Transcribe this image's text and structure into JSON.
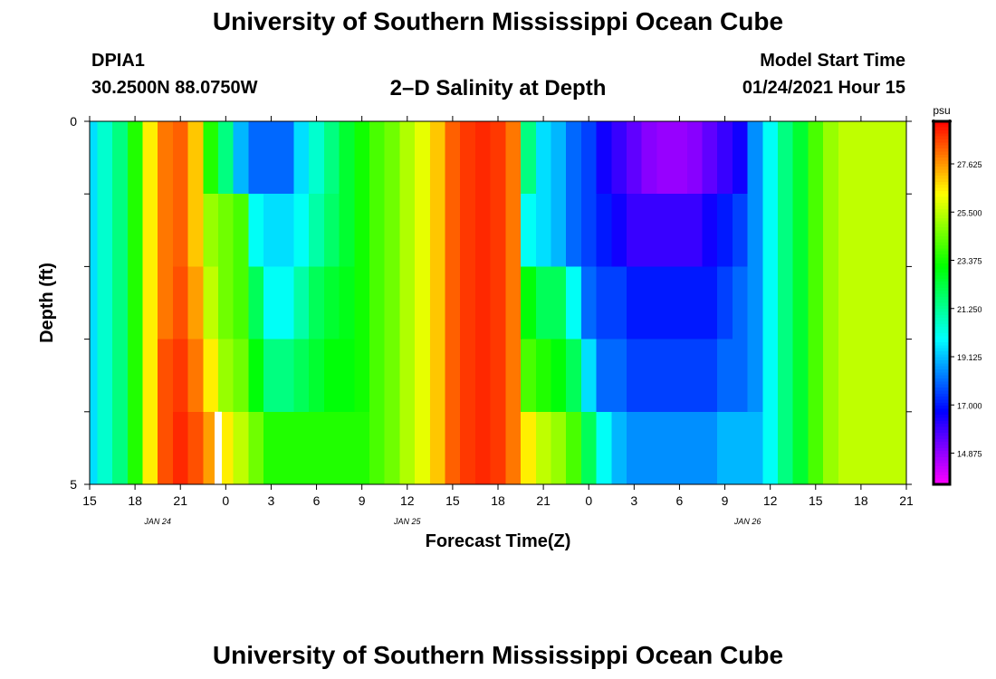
{
  "header": {
    "title": "University of Southern Mississippi Ocean Cube",
    "station_id": "DPIA1",
    "station_position": "30.2500N 88.0750W",
    "subtitle": "2–D Salinity at Depth",
    "model_start_label": "Model Start Time",
    "model_start_value": "01/24/2021 Hour 15"
  },
  "footer": {
    "title": "University of Southern Mississippi Ocean Cube"
  },
  "chart_data": {
    "type": "heatmap",
    "title": "2–D Salinity at Depth",
    "xlabel": "Forecast Time(Z)",
    "ylabel": "Depth (ft)",
    "x_start_hour": 15,
    "x_range_hours": [
      0,
      54
    ],
    "x_ticks": [
      {
        "hour": 0,
        "label": "15"
      },
      {
        "hour": 3,
        "label": "18"
      },
      {
        "hour": 6,
        "label": "21"
      },
      {
        "hour": 9,
        "label": "0"
      },
      {
        "hour": 12,
        "label": "3"
      },
      {
        "hour": 15,
        "label": "6"
      },
      {
        "hour": 18,
        "label": "9"
      },
      {
        "hour": 21,
        "label": "12"
      },
      {
        "hour": 24,
        "label": "15"
      },
      {
        "hour": 27,
        "label": "18"
      },
      {
        "hour": 30,
        "label": "21"
      },
      {
        "hour": 33,
        "label": "0"
      },
      {
        "hour": 36,
        "label": "3"
      },
      {
        "hour": 39,
        "label": "6"
      },
      {
        "hour": 42,
        "label": "9"
      },
      {
        "hour": 45,
        "label": "12"
      },
      {
        "hour": 48,
        "label": "15"
      },
      {
        "hour": 51,
        "label": "18"
      },
      {
        "hour": 54,
        "label": "21"
      }
    ],
    "date_labels": [
      {
        "hour": 4.5,
        "label": "JAN  24"
      },
      {
        "hour": 21,
        "label": "JAN  25"
      },
      {
        "hour": 43.5,
        "label": "JAN  26"
      }
    ],
    "y_range": [
      0,
      5
    ],
    "y_tick_labels": [
      {
        "depth": 0,
        "label": "0"
      },
      {
        "depth": 5,
        "label": "5"
      }
    ],
    "depth_levels": [
      0,
      0.5,
      1.5,
      2.5,
      3.5,
      4.5
    ],
    "colorbar": {
      "unit": "psu",
      "range": [
        13.5,
        29.5
      ],
      "tick_values": [
        27.625,
        25.5,
        23.375,
        21.25,
        19.125,
        17.0,
        14.875
      ],
      "tick_labels": [
        "27.625",
        "25.500",
        "23.375",
        "21.250",
        "19.125",
        "17.000",
        "14.875"
      ]
    },
    "time_series_hours": [
      0,
      1,
      2,
      3,
      4,
      5,
      6,
      7,
      8,
      9,
      10,
      11,
      12,
      13,
      14,
      15,
      16,
      17,
      18,
      19,
      20,
      21,
      22,
      23,
      24,
      25,
      26,
      27,
      28,
      29,
      30,
      31,
      32,
      33,
      34,
      35,
      36,
      37,
      38,
      39,
      40,
      41,
      42,
      43,
      44,
      45,
      46,
      47,
      48,
      49,
      50,
      51,
      52,
      53,
      54
    ],
    "salinity_by_depth": [
      [
        19.5,
        20.5,
        21.5,
        23.5,
        26.5,
        28.0,
        28.3,
        27.0,
        23.5,
        21.5,
        19.0,
        18.0,
        18.0,
        18.0,
        19.5,
        20.5,
        21.5,
        22.5,
        23.3,
        24.0,
        24.5,
        25.3,
        26.0,
        27.0,
        28.3,
        28.8,
        29.0,
        28.8,
        28.0,
        21.5,
        19.5,
        19.0,
        18.0,
        17.5,
        16.5,
        16.0,
        15.5,
        15.0,
        14.8,
        14.8,
        15.0,
        15.5,
        16.0,
        16.5,
        18.5,
        20.0,
        21.5,
        22.5,
        24.0,
        25.0,
        25.5,
        25.5,
        25.5,
        25.5,
        25.5
      ],
      [
        19.5,
        20.5,
        21.5,
        23.5,
        26.5,
        28.0,
        28.3,
        27.0,
        23.5,
        21.5,
        19.0,
        18.0,
        18.0,
        18.0,
        19.5,
        20.5,
        21.5,
        22.5,
        23.3,
        24.0,
        24.5,
        25.3,
        26.0,
        27.0,
        28.3,
        28.8,
        29.0,
        28.8,
        28.0,
        21.5,
        19.5,
        19.0,
        18.0,
        17.5,
        16.5,
        16.0,
        15.5,
        15.0,
        14.8,
        14.8,
        15.0,
        15.5,
        16.0,
        16.5,
        18.5,
        20.0,
        21.5,
        22.5,
        24.0,
        25.0,
        25.5,
        25.5,
        25.5,
        25.5,
        25.5
      ],
      [
        19.5,
        20.5,
        21.5,
        23.5,
        26.5,
        28.0,
        28.3,
        27.0,
        25.0,
        24.5,
        24.0,
        20.0,
        19.5,
        19.5,
        20.0,
        21.0,
        21.8,
        22.5,
        23.3,
        24.0,
        24.5,
        25.3,
        26.0,
        27.0,
        28.3,
        28.8,
        29.0,
        28.8,
        28.0,
        20.0,
        19.5,
        19.0,
        18.0,
        17.5,
        17.0,
        16.5,
        16.0,
        16.0,
        16.0,
        16.0,
        16.0,
        16.5,
        17.0,
        17.5,
        18.5,
        20.0,
        21.5,
        22.5,
        24.0,
        25.0,
        25.5,
        25.5,
        25.5,
        25.5,
        25.5
      ],
      [
        19.5,
        20.5,
        21.5,
        23.5,
        26.5,
        28.0,
        28.5,
        27.5,
        25.5,
        24.5,
        24.0,
        22.0,
        20.0,
        20.0,
        21.0,
        22.0,
        22.5,
        22.8,
        23.3,
        24.0,
        24.5,
        25.3,
        26.0,
        27.0,
        28.3,
        28.8,
        29.0,
        28.8,
        28.0,
        23.0,
        22.0,
        22.0,
        20.0,
        18.0,
        17.5,
        17.5,
        17.0,
        17.0,
        17.0,
        17.0,
        17.0,
        17.0,
        17.5,
        18.0,
        18.5,
        20.0,
        21.5,
        22.5,
        24.0,
        25.0,
        25.5,
        25.5,
        25.5,
        25.5,
        25.5
      ],
      [
        19.5,
        20.5,
        21.5,
        23.5,
        26.5,
        28.5,
        28.8,
        28.0,
        26.5,
        25.0,
        24.5,
        23.0,
        21.5,
        21.5,
        22.0,
        22.5,
        23.0,
        23.0,
        23.3,
        24.0,
        24.5,
        25.3,
        26.0,
        27.0,
        28.3,
        28.8,
        29.0,
        28.8,
        28.0,
        24.0,
        23.5,
        23.0,
        22.0,
        19.5,
        18.0,
        18.0,
        17.5,
        17.5,
        17.5,
        17.5,
        17.5,
        17.5,
        18.0,
        18.0,
        18.5,
        20.0,
        21.5,
        22.5,
        24.0,
        25.0,
        25.5,
        25.5,
        25.5,
        25.5,
        25.5
      ],
      [
        19.5,
        20.5,
        21.5,
        23.5,
        26.5,
        28.5,
        29.0,
        28.5,
        27.5,
        26.5,
        25.5,
        24.5,
        23.5,
        23.5,
        23.5,
        23.5,
        23.5,
        23.5,
        23.5,
        24.0,
        24.5,
        25.3,
        26.0,
        27.0,
        28.3,
        28.8,
        29.0,
        28.8,
        28.0,
        26.5,
        25.5,
        25.0,
        24.0,
        22.0,
        20.0,
        19.0,
        18.5,
        18.5,
        18.5,
        18.5,
        18.5,
        18.5,
        19.0,
        19.0,
        19.0,
        20.0,
        21.5,
        22.5,
        24.0,
        25.0,
        25.5,
        25.5,
        25.5,
        25.5,
        25.5
      ]
    ],
    "missing_data": [
      {
        "hour": 8.5,
        "depth": 4.5
      }
    ]
  }
}
